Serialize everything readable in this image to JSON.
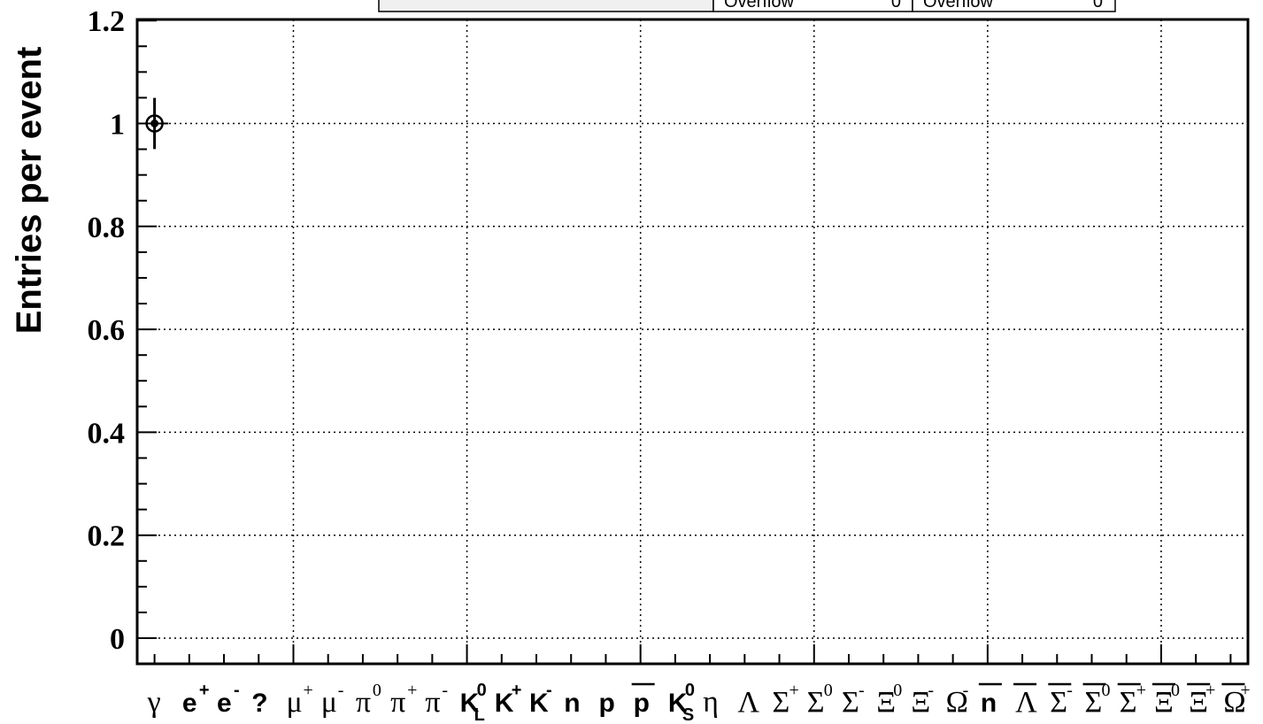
{
  "stats_box": {
    "left_label": "Overflow",
    "left_value": "0",
    "right_label": "Overflow",
    "right_value": "0"
  },
  "chart_data": {
    "type": "scatter",
    "title": "",
    "xlabel": "",
    "ylabel": "Entries per event",
    "ylim": [
      0,
      1.2
    ],
    "yticks": [
      "0",
      "0.2",
      "0.4",
      "0.6",
      "0.8",
      "1",
      "1.2"
    ],
    "grid": true,
    "categories": [
      {
        "label": "γ",
        "sup": "",
        "sub": "",
        "style": "serif",
        "color": "#000000",
        "bar": false
      },
      {
        "label": "e",
        "sup": "+",
        "sub": "",
        "style": "sans",
        "color": "#000000",
        "bar": false
      },
      {
        "label": "e",
        "sup": "-",
        "sub": "",
        "style": "sans",
        "color": "#000000",
        "bar": false
      },
      {
        "label": "?",
        "sup": "",
        "sub": "",
        "style": "sans",
        "color": "#ff0000",
        "bar": false
      },
      {
        "label": "μ",
        "sup": "+",
        "sub": "",
        "style": "serif",
        "color": "#000000",
        "bar": false
      },
      {
        "label": "μ",
        "sup": "-",
        "sub": "",
        "style": "serif",
        "color": "#000000",
        "bar": false
      },
      {
        "label": "π",
        "sup": "0",
        "sub": "",
        "style": "serif",
        "color": "#000000",
        "bar": false
      },
      {
        "label": "π",
        "sup": "+",
        "sub": "",
        "style": "serif",
        "color": "#000000",
        "bar": false
      },
      {
        "label": "π",
        "sup": "-",
        "sub": "",
        "style": "serif",
        "color": "#000000",
        "bar": false
      },
      {
        "label": "K",
        "sup": "0",
        "sub": "L",
        "style": "sans",
        "color": "#000000",
        "bar": false
      },
      {
        "label": "K",
        "sup": "+",
        "sub": "",
        "style": "sans",
        "color": "#000000",
        "bar": false
      },
      {
        "label": "K",
        "sup": "-",
        "sub": "",
        "style": "sans",
        "color": "#000000",
        "bar": false
      },
      {
        "label": "n",
        "sup": "",
        "sub": "",
        "style": "sans",
        "color": "#000000",
        "bar": false
      },
      {
        "label": "p",
        "sup": "",
        "sub": "",
        "style": "sans",
        "color": "#000000",
        "bar": false
      },
      {
        "label": "p",
        "sup": "",
        "sub": "",
        "style": "sans",
        "color": "#000000",
        "bar": true
      },
      {
        "label": "K",
        "sup": "0",
        "sub": "S",
        "style": "sans",
        "color": "#000000",
        "bar": false
      },
      {
        "label": "η",
        "sup": "",
        "sub": "",
        "style": "serif",
        "color": "#000000",
        "bar": false
      },
      {
        "label": "Λ",
        "sup": "",
        "sub": "",
        "style": "serif",
        "color": "#000000",
        "bar": false
      },
      {
        "label": "Σ",
        "sup": "+",
        "sub": "",
        "style": "serif",
        "color": "#000000",
        "bar": false
      },
      {
        "label": "Σ",
        "sup": "0",
        "sub": "",
        "style": "serif",
        "color": "#000000",
        "bar": false
      },
      {
        "label": "Σ",
        "sup": "-",
        "sub": "",
        "style": "serif",
        "color": "#000000",
        "bar": false
      },
      {
        "label": "Ξ",
        "sup": "0",
        "sub": "",
        "style": "serif",
        "color": "#000000",
        "bar": false
      },
      {
        "label": "Ξ",
        "sup": "-",
        "sub": "",
        "style": "serif",
        "color": "#000000",
        "bar": false
      },
      {
        "label": "Ω",
        "sup": "-",
        "sub": "",
        "style": "serif",
        "color": "#000000",
        "bar": false
      },
      {
        "label": "n",
        "sup": "",
        "sub": "",
        "style": "sans",
        "color": "#000000",
        "bar": true
      },
      {
        "label": "Λ",
        "sup": "",
        "sub": "",
        "style": "serif",
        "color": "#000000",
        "bar": true
      },
      {
        "label": "Σ",
        "sup": "-",
        "sub": "",
        "style": "serif",
        "color": "#000000",
        "bar": true
      },
      {
        "label": "Σ",
        "sup": "0",
        "sub": "",
        "style": "serif",
        "color": "#000000",
        "bar": true
      },
      {
        "label": "Σ",
        "sup": "+",
        "sub": "",
        "style": "serif",
        "color": "#000000",
        "bar": true
      },
      {
        "label": "Ξ",
        "sup": "0",
        "sub": "",
        "style": "serif",
        "color": "#000000",
        "bar": true
      },
      {
        "label": "Ξ",
        "sup": "+",
        "sub": "",
        "style": "serif",
        "color": "#000000",
        "bar": true
      },
      {
        "label": "Ω",
        "sup": "+",
        "sub": "",
        "style": "serif",
        "color": "#000000",
        "bar": true
      }
    ],
    "points": [
      {
        "category_index": 0,
        "y": 1.0,
        "yerr": 0.06
      }
    ]
  }
}
